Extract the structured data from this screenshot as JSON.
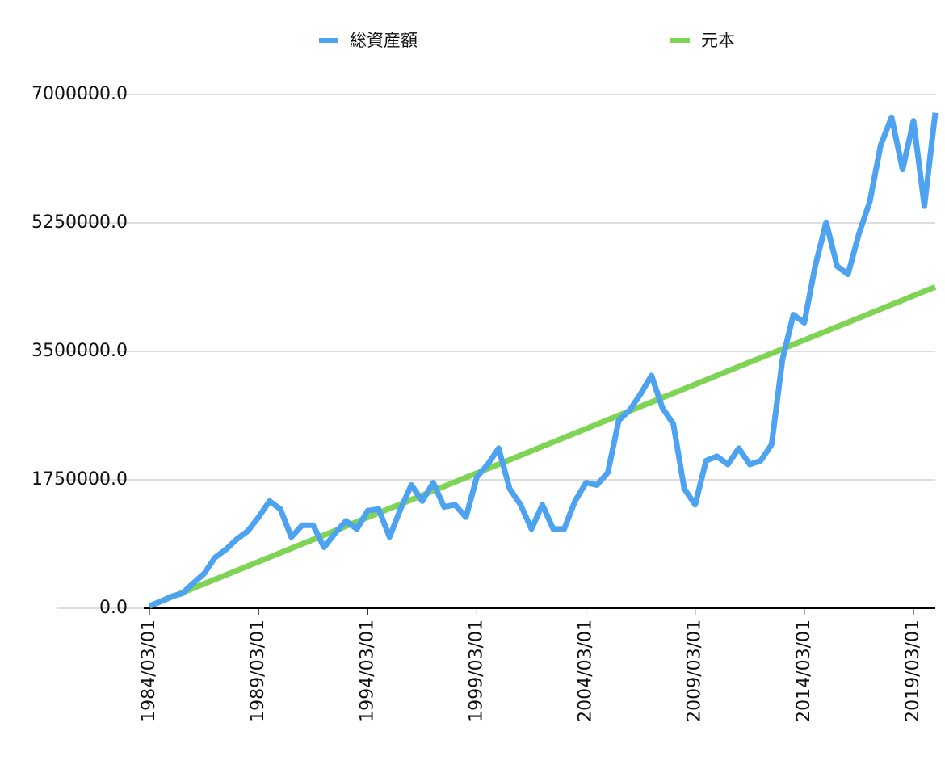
{
  "chart_data": {
    "type": "line",
    "x": [
      "1984/03/01",
      "1984/09/01",
      "1985/03/01",
      "1985/09/01",
      "1986/03/01",
      "1986/09/01",
      "1987/03/01",
      "1987/09/01",
      "1988/03/01",
      "1988/09/01",
      "1989/03/01",
      "1989/09/01",
      "1990/03/01",
      "1990/09/01",
      "1991/03/01",
      "1991/09/01",
      "1992/03/01",
      "1992/09/01",
      "1993/03/01",
      "1993/09/01",
      "1994/03/01",
      "1994/09/01",
      "1995/03/01",
      "1995/09/01",
      "1996/03/01",
      "1996/09/01",
      "1997/03/01",
      "1997/09/01",
      "1998/03/01",
      "1998/09/01",
      "1999/03/01",
      "1999/09/01",
      "2000/03/01",
      "2000/09/01",
      "2001/03/01",
      "2001/09/01",
      "2002/03/01",
      "2002/09/01",
      "2003/03/01",
      "2003/09/01",
      "2004/03/01",
      "2004/09/01",
      "2005/03/01",
      "2005/09/01",
      "2006/03/01",
      "2006/09/01",
      "2007/03/01",
      "2007/09/01",
      "2008/03/01",
      "2008/09/01",
      "2009/03/01",
      "2009/09/01",
      "2010/03/01",
      "2010/09/01",
      "2011/03/01",
      "2011/09/01",
      "2012/03/01",
      "2012/09/01",
      "2013/03/01",
      "2013/09/01",
      "2014/03/01",
      "2014/09/01",
      "2015/03/01",
      "2015/09/01",
      "2016/03/01",
      "2016/09/01",
      "2017/03/01",
      "2017/09/01",
      "2018/03/01",
      "2018/09/01",
      "2019/03/01",
      "2019/09/01",
      "2020/03/01"
    ],
    "series": [
      {
        "name": "総資産額",
        "color": "#4da3f0",
        "values": [
          30000,
          90000,
          160000,
          200000,
          340000,
          470000,
          690000,
          800000,
          940000,
          1050000,
          1240000,
          1460000,
          1350000,
          970000,
          1130000,
          1130000,
          830000,
          1020000,
          1190000,
          1080000,
          1330000,
          1350000,
          970000,
          1350000,
          1680000,
          1460000,
          1710000,
          1380000,
          1410000,
          1240000,
          1790000,
          1960000,
          2180000,
          1630000,
          1410000,
          1080000,
          1410000,
          1080000,
          1080000,
          1460000,
          1710000,
          1680000,
          1850000,
          2560000,
          2700000,
          2920000,
          3170000,
          2730000,
          2510000,
          1630000,
          1410000,
          2010000,
          2070000,
          1960000,
          2180000,
          1960000,
          2010000,
          2230000,
          3390000,
          4000000,
          3890000,
          4660000,
          5260000,
          4660000,
          4550000,
          5100000,
          5540000,
          6310000,
          6690000,
          5980000,
          6640000,
          5480000,
          6750000
        ]
      },
      {
        "name": "元本",
        "color": "#7fd455",
        "values": [
          30000,
          90400,
          150800,
          211200,
          271600,
          332000,
          392400,
          452800,
          513200,
          573600,
          634000,
          694400,
          754800,
          815200,
          875600,
          936000,
          996400,
          1056800,
          1117200,
          1177600,
          1238000,
          1298400,
          1358800,
          1419200,
          1479600,
          1540000,
          1600400,
          1660800,
          1721200,
          1781600,
          1842000,
          1902400,
          1962800,
          2023200,
          2083600,
          2144000,
          2204400,
          2264800,
          2325200,
          2385600,
          2446000,
          2506400,
          2566800,
          2627200,
          2687600,
          2748000,
          2808400,
          2868800,
          2929200,
          2989600,
          3050000,
          3110400,
          3170800,
          3231200,
          3291600,
          3352000,
          3412400,
          3472800,
          3533200,
          3593600,
          3654000,
          3714400,
          3774800,
          3835200,
          3895600,
          3956000,
          4016400,
          4076800,
          4137200,
          4197600,
          4258000,
          4318400,
          4378800
        ]
      }
    ],
    "xlim": [
      "1984/03/01",
      "2020/03/01"
    ],
    "xticks": [
      "1984/03/01",
      "1989/03/01",
      "1994/03/01",
      "1999/03/01",
      "2004/03/01",
      "2009/03/01",
      "2014/03/01",
      "2019/03/01"
    ],
    "ylim": [
      0,
      7000000
    ],
    "yticks": [
      {
        "value": 0,
        "label": "0.0"
      },
      {
        "value": 1750000,
        "label": "1750000.0"
      },
      {
        "value": 3500000,
        "label": "3500000.0"
      },
      {
        "value": 5250000,
        "label": "5250000.0"
      },
      {
        "value": 7000000,
        "label": "7000000.0"
      }
    ],
    "grid": true,
    "legend": "top"
  }
}
